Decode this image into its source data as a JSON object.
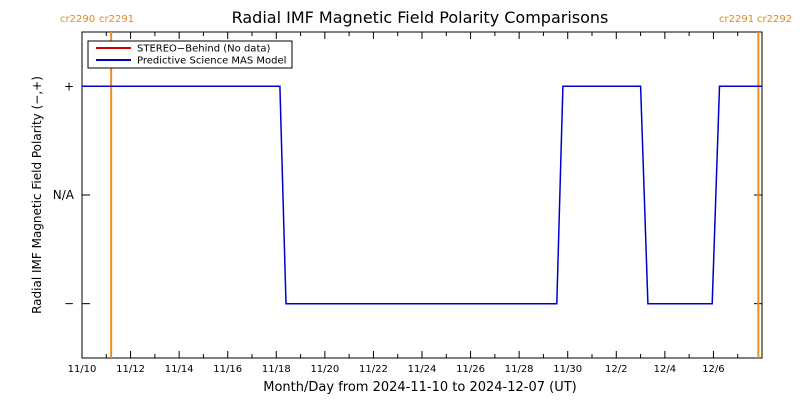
{
  "chart_data": {
    "type": "line",
    "title": "Radial IMF Magnetic Field Polarity Comparisons",
    "xlabel": "Month/Day from 2024-11-10 to 2024-12-07 (UT)",
    "ylabel": "Radial IMF Magnetic Field Polarity (−,+)",
    "x_unit": "days since 2024-11-10",
    "xlim": [
      0,
      28
    ],
    "ylim": [
      -1.5,
      1.5
    ],
    "x_ticks": [
      {
        "x": 0,
        "label": "11/10"
      },
      {
        "x": 2,
        "label": "11/12"
      },
      {
        "x": 4,
        "label": "11/14"
      },
      {
        "x": 6,
        "label": "11/16"
      },
      {
        "x": 8,
        "label": "11/18"
      },
      {
        "x": 10,
        "label": "11/20"
      },
      {
        "x": 12,
        "label": "11/22"
      },
      {
        "x": 14,
        "label": "11/24"
      },
      {
        "x": 16,
        "label": "11/26"
      },
      {
        "x": 18,
        "label": "11/28"
      },
      {
        "x": 20,
        "label": "11/30"
      },
      {
        "x": 22,
        "label": "12/2"
      },
      {
        "x": 24,
        "label": "12/4"
      },
      {
        "x": 26,
        "label": "12/6"
      }
    ],
    "y_ticks": [
      {
        "y": 1,
        "label": "+"
      },
      {
        "y": 0,
        "label": "N/A"
      },
      {
        "y": -1,
        "label": "−"
      }
    ],
    "legend": {
      "placement": "top-left",
      "entries": [
        {
          "name": "STEREO−Behind (No data)",
          "color": "#cc0000"
        },
        {
          "name": "Predictive Science MAS Model",
          "color": "#0000cc"
        }
      ]
    },
    "series": [
      {
        "name": "STEREO−Behind (No data)",
        "color": "#cc0000",
        "x": [],
        "y": []
      },
      {
        "name": "Predictive Science MAS Model",
        "color": "#0000cc",
        "x": [
          0,
          8.15,
          8.4,
          19.55,
          19.8,
          23.0,
          23.3,
          25.95,
          26.25,
          28
        ],
        "y": [
          1,
          1,
          -1,
          -1,
          1,
          1,
          -1,
          -1,
          1,
          1
        ]
      }
    ],
    "carrington_rotations": [
      {
        "x": 1.2,
        "left_label": "cr2290",
        "right_label": "cr2291"
      },
      {
        "x": 27.85,
        "left_label": "cr2291",
        "right_label": "cr2292"
      }
    ],
    "cr_color": "#f08c1e"
  }
}
